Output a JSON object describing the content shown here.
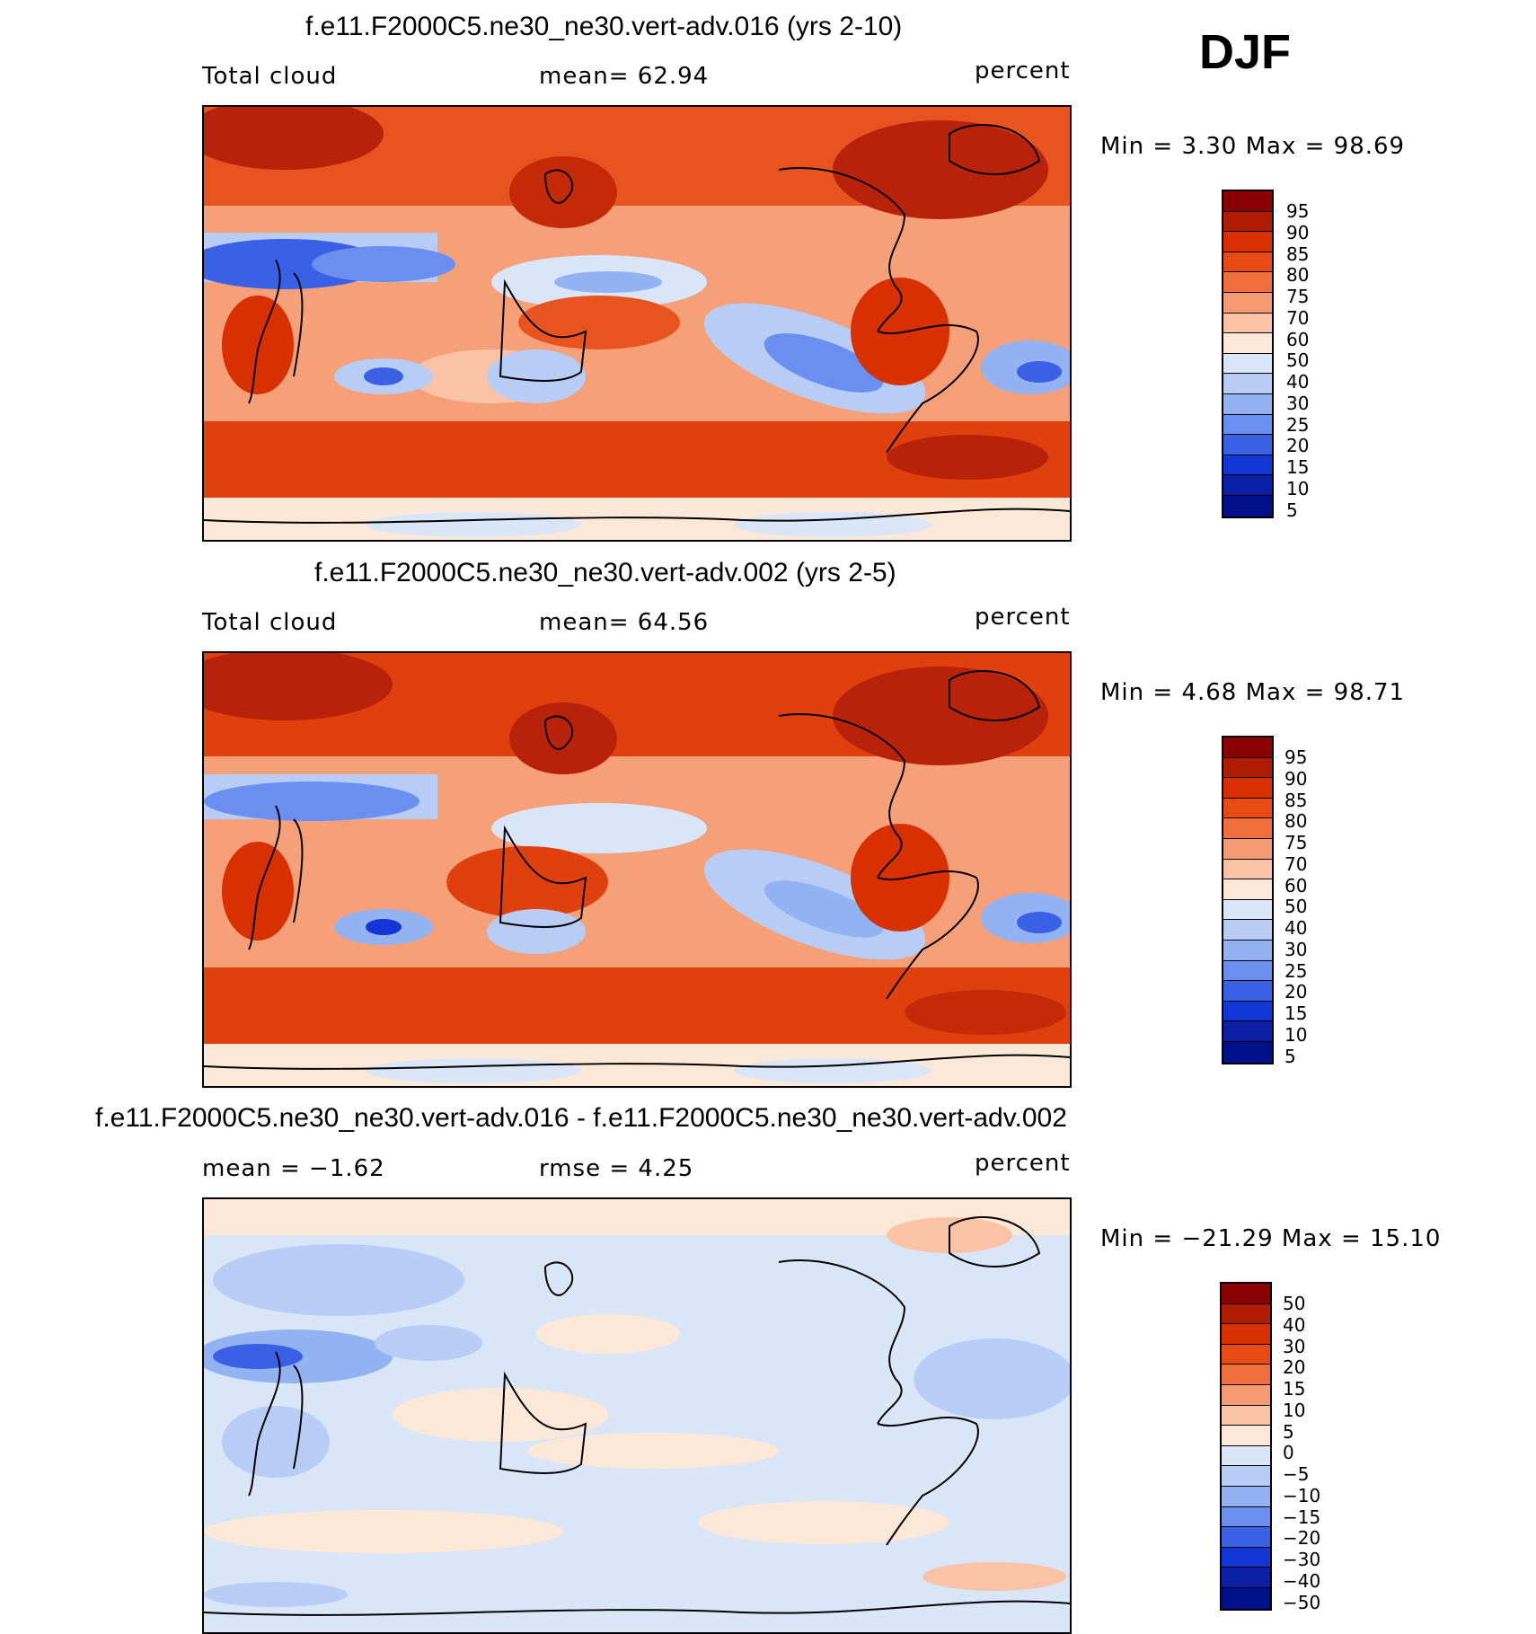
{
  "season": "DJF",
  "panels": [
    {
      "title": "f.e11.F2000C5.ne30_ne30.vert-adv.016 (yrs 2-10)",
      "left_label": "Total cloud",
      "center_label": "mean=   62.94",
      "units": "percent",
      "min_max": "Min =    3.30 Max =   98.69",
      "kind": "absolute"
    },
    {
      "title": "f.e11.F2000C5.ne30_ne30.vert-adv.002 (yrs 2-5)",
      "left_label": "Total cloud",
      "center_label": "mean=   64.56",
      "units": "percent",
      "min_max": "Min =    4.68 Max =   98.71",
      "kind": "absolute"
    },
    {
      "title": "f.e11.F2000C5.ne30_ne30.vert-adv.016 - f.e11.F2000C5.ne30_ne30.vert-adv.002",
      "left_label": "mean =   −1.62",
      "center_label": "rmse =    4.25",
      "units": "percent",
      "min_max": "Min = −21.29 Max =   15.10",
      "kind": "difference"
    }
  ],
  "colorbars": [
    {
      "labels": [
        "95",
        "90",
        "85",
        "80",
        "75",
        "70",
        "60",
        "50",
        "40",
        "30",
        "25",
        "20",
        "15",
        "10",
        "5"
      ],
      "colors": [
        "#8b0000",
        "#b01c00",
        "#d83000",
        "#e84a14",
        "#f06e3c",
        "#f59a72",
        "#fbc3a6",
        "#fde8d8",
        "#d8e6f8",
        "#b7cdf5",
        "#93b2f1",
        "#6a8ff0",
        "#3a60e6",
        "#1236d6",
        "#0a1ea6",
        "#00108a"
      ]
    },
    {
      "labels": [
        "95",
        "90",
        "85",
        "80",
        "75",
        "70",
        "60",
        "50",
        "40",
        "30",
        "25",
        "20",
        "15",
        "10",
        "5"
      ],
      "colors": [
        "#8b0000",
        "#b01c00",
        "#d83000",
        "#e84a14",
        "#f06e3c",
        "#f59a72",
        "#fbc3a6",
        "#fde8d8",
        "#d8e6f8",
        "#b7cdf5",
        "#93b2f1",
        "#6a8ff0",
        "#3a60e6",
        "#1236d6",
        "#0a1ea6",
        "#00108a"
      ]
    },
    {
      "labels": [
        "50",
        "40",
        "30",
        "20",
        "15",
        "10",
        "5",
        "0",
        "−5",
        "−10",
        "−15",
        "−20",
        "−30",
        "−40",
        "−50"
      ],
      "colors": [
        "#8b0000",
        "#b01c00",
        "#d83000",
        "#e84a14",
        "#f06e3c",
        "#f59a72",
        "#fbc3a6",
        "#fde8d8",
        "#d8e6f8",
        "#b7cdf5",
        "#93b2f1",
        "#6a8ff0",
        "#3a60e6",
        "#1236d6",
        "#0a1ea6",
        "#00108a"
      ]
    }
  ],
  "chart_data": [
    {
      "type": "heatmap",
      "title": "f.e11.F2000C5.ne30_ne30.vert-adv.016 (yrs 2-10)",
      "variable": "Total cloud",
      "units": "percent",
      "mean": 62.94,
      "min": 3.3,
      "max": 98.69,
      "contour_levels": [
        5,
        10,
        15,
        20,
        25,
        30,
        40,
        50,
        60,
        70,
        75,
        80,
        85,
        90,
        95
      ]
    },
    {
      "type": "heatmap",
      "title": "f.e11.F2000C5.ne30_ne30.vert-adv.002 (yrs 2-5)",
      "variable": "Total cloud",
      "units": "percent",
      "mean": 64.56,
      "min": 4.68,
      "max": 98.71,
      "contour_levels": [
        5,
        10,
        15,
        20,
        25,
        30,
        40,
        50,
        60,
        70,
        75,
        80,
        85,
        90,
        95
      ]
    },
    {
      "type": "heatmap",
      "title": "f.e11.F2000C5.ne30_ne30.vert-adv.016 - f.e11.F2000C5.ne30_ne30.vert-adv.002",
      "units": "percent",
      "mean": -1.62,
      "rmse": 4.25,
      "min": -21.29,
      "max": 15.1,
      "contour_levels": [
        -50,
        -40,
        -30,
        -20,
        -15,
        -10,
        -5,
        0,
        5,
        10,
        15,
        20,
        30,
        40,
        50
      ]
    }
  ]
}
